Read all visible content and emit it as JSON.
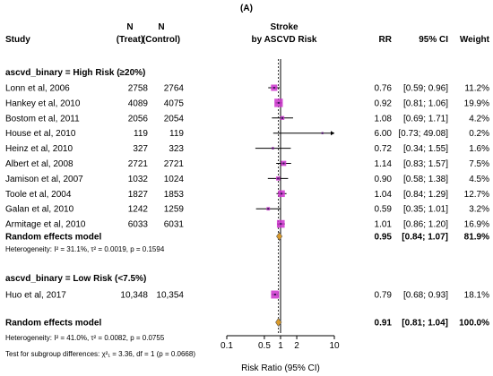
{
  "panel_label": "(A)",
  "headers": {
    "study": "Study",
    "n_treat_1": "N",
    "n_treat_2": "(Treat)",
    "n_control_1": "N",
    "n_control_2": "(Control)",
    "plot_1": "Stroke",
    "plot_2": "by ASCVD Risk",
    "rr": "RR",
    "ci": "95% CI",
    "weight": "Weight"
  },
  "chart_data": {
    "type": "forest",
    "xlabel": "Risk Ratio (95% CI)",
    "x_scale": "log",
    "xlim": [
      0.1,
      10
    ],
    "x_ticks": [
      {
        "value": 0.1,
        "label": "0.1"
      },
      {
        "value": 0.5,
        "label": "0.5"
      },
      {
        "value": 1,
        "label": "1"
      },
      {
        "value": 2,
        "label": "2"
      },
      {
        "value": 10,
        "label": "10"
      }
    ],
    "overall_reference_line": 0.91,
    "subgroups": [
      {
        "label": "ascvd_binary = High Risk (≥20%)",
        "studies": [
          {
            "study": "Lonn et al, 2006",
            "n_treat": "2758",
            "n_control": "2764",
            "rr": 0.76,
            "lo": 0.59,
            "hi": 0.96,
            "rr_text": "0.76",
            "ci_text": "[0.59;  0.96]",
            "weight_text": "11.2%",
            "weight": 11.2
          },
          {
            "study": "Hankey et al, 2010",
            "n_treat": "4089",
            "n_control": "4075",
            "rr": 0.92,
            "lo": 0.81,
            "hi": 1.06,
            "rr_text": "0.92",
            "ci_text": "[0.81;  1.06]",
            "weight_text": "19.9%",
            "weight": 19.9
          },
          {
            "study": "Bostom et al, 2011",
            "n_treat": "2056",
            "n_control": "2054",
            "rr": 1.08,
            "lo": 0.69,
            "hi": 1.71,
            "rr_text": "1.08",
            "ci_text": "[0.69;  1.71]",
            "weight_text": "4.2%",
            "weight": 4.2
          },
          {
            "study": "House et al, 2010",
            "n_treat": "119",
            "n_control": "119",
            "rr": 6.0,
            "lo": 0.73,
            "hi": 49.08,
            "rr_text": "6.00",
            "ci_text": "[0.73; 49.08]",
            "weight_text": "0.2%",
            "weight": 0.2
          },
          {
            "study": "Heinz et al, 2010",
            "n_treat": "327",
            "n_control": "323",
            "rr": 0.72,
            "lo": 0.34,
            "hi": 1.55,
            "rr_text": "0.72",
            "ci_text": "[0.34;  1.55]",
            "weight_text": "1.6%",
            "weight": 1.6
          },
          {
            "study": "Albert et al, 2008",
            "n_treat": "2721",
            "n_control": "2721",
            "rr": 1.14,
            "lo": 0.83,
            "hi": 1.57,
            "rr_text": "1.14",
            "ci_text": "[0.83;  1.57]",
            "weight_text": "7.5%",
            "weight": 7.5
          },
          {
            "study": "Jamison et al, 2007",
            "n_treat": "1032",
            "n_control": "1024",
            "rr": 0.9,
            "lo": 0.58,
            "hi": 1.38,
            "rr_text": "0.90",
            "ci_text": "[0.58;  1.38]",
            "weight_text": "4.5%",
            "weight": 4.5
          },
          {
            "study": "Toole et al, 2004",
            "n_treat": "1827",
            "n_control": "1853",
            "rr": 1.04,
            "lo": 0.84,
            "hi": 1.29,
            "rr_text": "1.04",
            "ci_text": "[0.84;  1.29]",
            "weight_text": "12.7%",
            "weight": 12.7
          },
          {
            "study": "Galan et al, 2010",
            "n_treat": "1242",
            "n_control": "1259",
            "rr": 0.59,
            "lo": 0.35,
            "hi": 1.01,
            "rr_text": "0.59",
            "ci_text": "[0.35;  1.01]",
            "weight_text": "3.2%",
            "weight": 3.2
          },
          {
            "study": "Armitage et al, 2010",
            "n_treat": "6033",
            "n_control": "6031",
            "rr": 1.01,
            "lo": 0.86,
            "hi": 1.2,
            "rr_text": "1.01",
            "ci_text": "[0.86;  1.20]",
            "weight_text": "16.9%",
            "weight": 16.9
          }
        ],
        "summary": {
          "label": "Random effects model",
          "rr": 0.95,
          "lo": 0.84,
          "hi": 1.07,
          "rr_text": "0.95",
          "ci_text": "[0.84;  1.07]",
          "weight_text": "81.9%"
        },
        "heterogeneity": "Heterogeneity: I² = 31.1%, τ² = 0.0019, p = 0.1594"
      },
      {
        "label": "ascvd_binary = Low Risk (<7.5%)",
        "studies": [
          {
            "study": "Huo et al, 2017",
            "n_treat": "10,348",
            "n_control": "10,354",
            "rr": 0.79,
            "lo": 0.68,
            "hi": 0.93,
            "rr_text": "0.79",
            "ci_text": "[0.68;  0.93]",
            "weight_text": "18.1%",
            "weight": 18.1
          }
        ]
      }
    ],
    "overall": {
      "label": "Random effects model",
      "rr": 0.91,
      "lo": 0.81,
      "hi": 1.04,
      "rr_text": "0.91",
      "ci_text": "[0.81;  1.04]",
      "weight_text": "100.0%"
    },
    "overall_heterogeneity": "Heterogeneity: I² = 41.0%, τ² = 0.0082, p = 0.0755",
    "subgroup_test": "Test for subgroup differences: χ²₁ = 3.36, df = 1 (p = 0.0668)",
    "colors": {
      "square": "#cc33cc",
      "diamond": "#d99a2b",
      "line": "#000000"
    }
  }
}
